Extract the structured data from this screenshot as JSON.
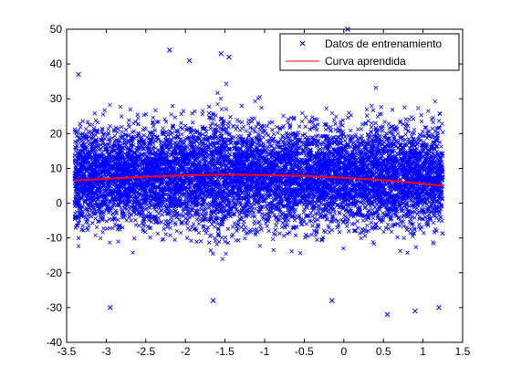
{
  "chart_data": {
    "type": "scatter",
    "title": "",
    "xlabel": "",
    "ylabel": "",
    "xlim": [
      -3.5,
      1.5
    ],
    "ylim": [
      -40,
      50
    ],
    "xticks": [
      -3.5,
      -3,
      -2.5,
      -2,
      -1.5,
      -1,
      -0.5,
      0,
      0.5,
      1,
      1.5
    ],
    "xtick_labels": [
      "-3.5",
      "-3",
      "-2.5",
      "-2",
      "-1.5",
      "-1",
      "-0.5",
      "0",
      "0.5",
      "1",
      "1.5"
    ],
    "yticks": [
      -40,
      -30,
      -20,
      -10,
      0,
      10,
      20,
      30,
      40,
      50
    ],
    "ytick_labels": [
      "-40",
      "-30",
      "-20",
      "-10",
      "0",
      "10",
      "20",
      "30",
      "40",
      "50"
    ],
    "grid": false,
    "legend_position": "top-right",
    "series": [
      {
        "name": "Datos de entrenamiento",
        "kind": "scatter",
        "marker": "x",
        "color": "#0000ff",
        "x_range": [
          -3.4,
          1.25
        ],
        "band_center": 8,
        "band_half_width_core": 18,
        "outlier_extent": [
          -32,
          50
        ],
        "outliers": [
          {
            "x": -3.35,
            "y": 37
          },
          {
            "x": -2.2,
            "y": 44
          },
          {
            "x": -1.95,
            "y": 41
          },
          {
            "x": -1.55,
            "y": 43
          },
          {
            "x": -1.45,
            "y": 42
          },
          {
            "x": 0.05,
            "y": 50
          },
          {
            "x": -2.95,
            "y": -30
          },
          {
            "x": -1.65,
            "y": -28
          },
          {
            "x": -0.15,
            "y": -28
          },
          {
            "x": 0.55,
            "y": -32
          },
          {
            "x": 0.9,
            "y": -31
          },
          {
            "x": 1.2,
            "y": -30
          }
        ]
      },
      {
        "name": "Curva aprendida",
        "kind": "line",
        "color": "#ff0000",
        "x": [
          -3.4,
          -3.0,
          -2.5,
          -2.0,
          -1.5,
          -1.0,
          -0.5,
          0.0,
          0.5,
          1.0,
          1.25
        ],
        "y": [
          6.5,
          7.0,
          7.6,
          8.0,
          8.2,
          8.1,
          7.8,
          7.3,
          6.6,
          5.6,
          5.0
        ]
      }
    ]
  }
}
